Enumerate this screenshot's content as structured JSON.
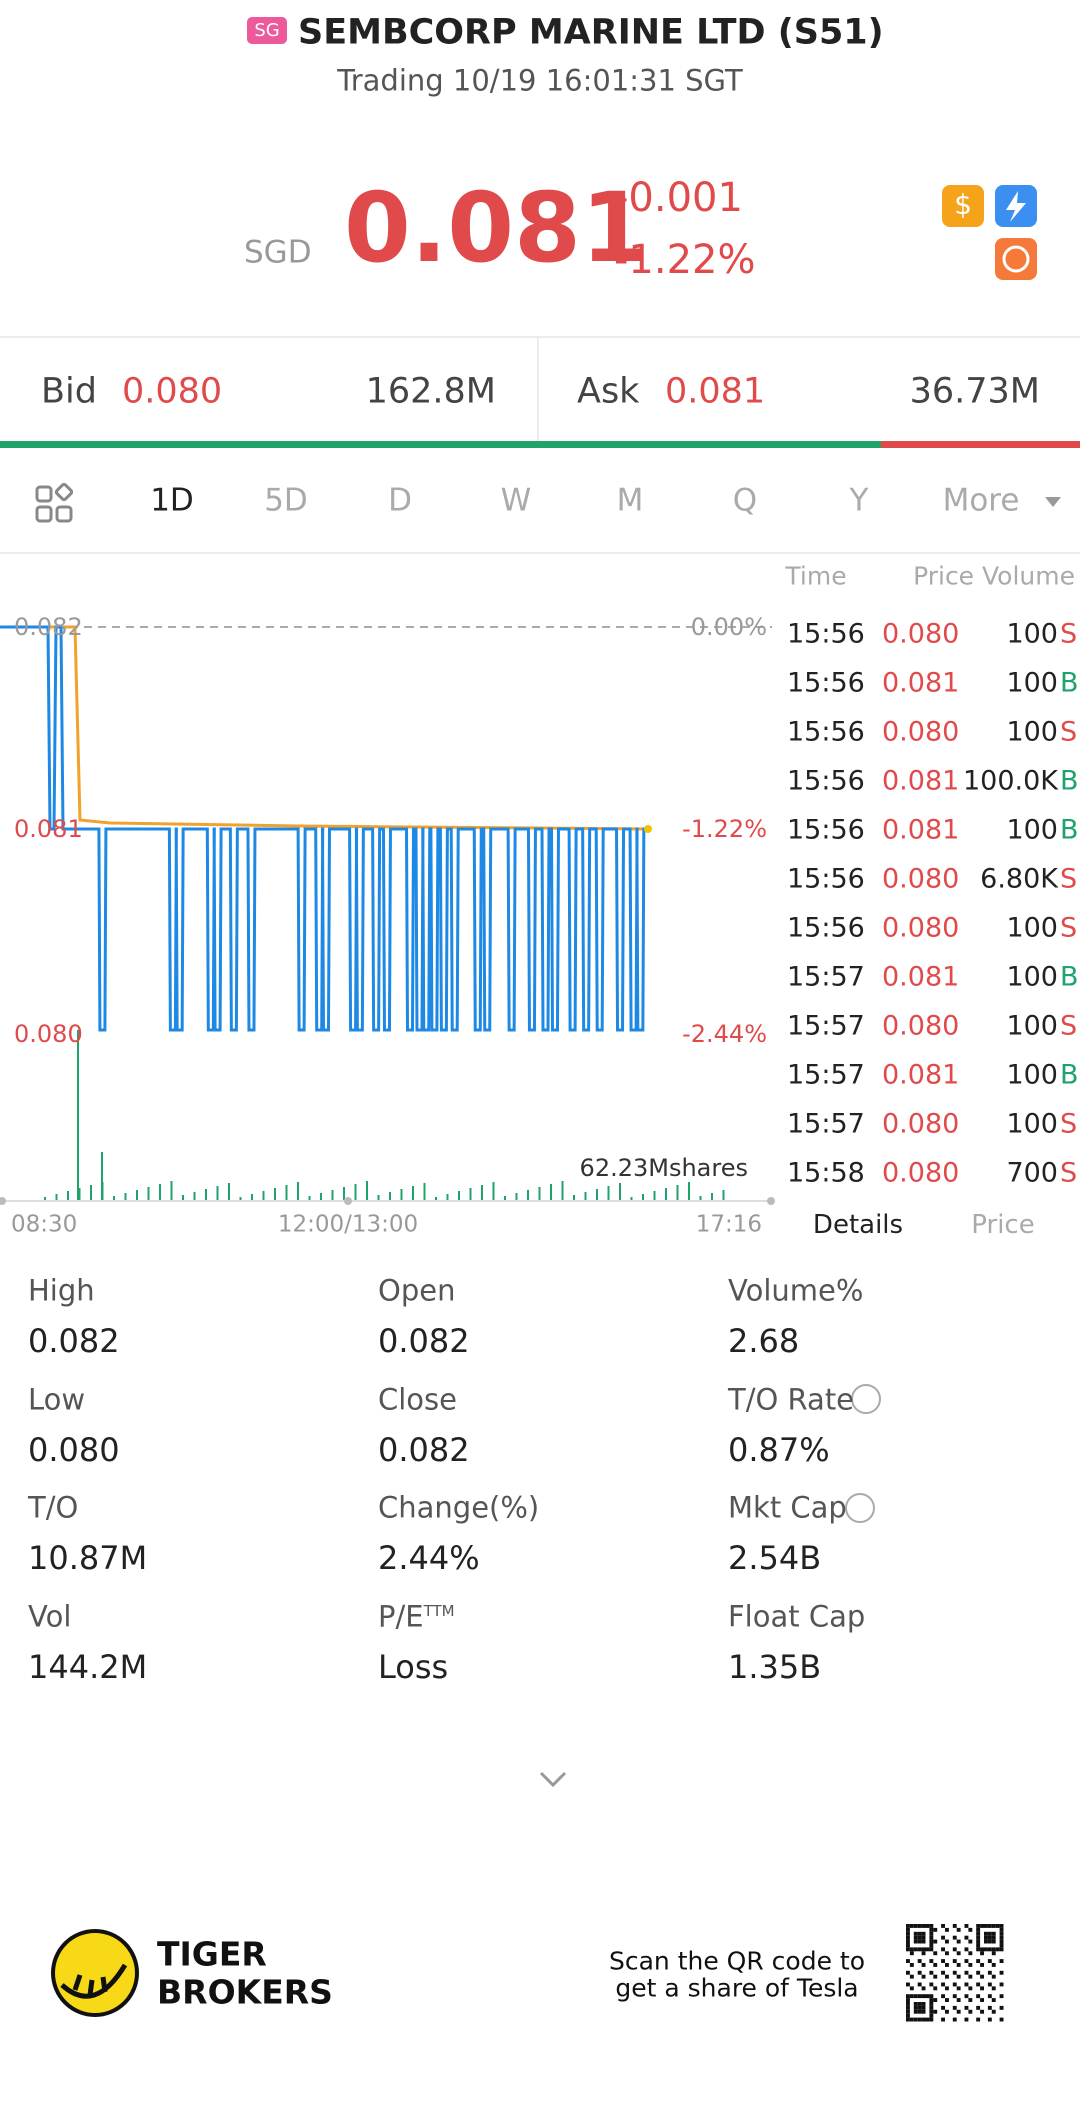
{
  "header": {
    "badge": "SG",
    "title": "SEMBCORP MARINE LTD (S51)",
    "status": "Trading 10/19 16:01:31 SGT"
  },
  "quote": {
    "currency": "SGD",
    "price": "0.081",
    "change": "-0.001",
    "change_pct": "-1.22%"
  },
  "bidask": {
    "bid_label": "Bid",
    "bid": "0.080",
    "bid_size": "162.8M",
    "ask_label": "Ask",
    "ask": "0.081",
    "ask_size": "36.73M"
  },
  "tabs": [
    "1D",
    "5D",
    "D",
    "W",
    "M",
    "Q",
    "Y",
    "More"
  ],
  "chart": {
    "price_labels": [
      "0.082",
      "0.081",
      "0.080"
    ],
    "pct_labels": [
      "0.00%",
      "-1.22%",
      "-2.44%"
    ],
    "volume": "62.23Mshares",
    "times": [
      "08:30",
      "12:00/13:00",
      "17:16"
    ]
  },
  "trades": {
    "headers": [
      "Time",
      "Price Volume"
    ],
    "rows": [
      [
        "15:56",
        "0.080",
        "100",
        "S"
      ],
      [
        "15:56",
        "0.081",
        "100",
        "B"
      ],
      [
        "15:56",
        "0.080",
        "100",
        "S"
      ],
      [
        "15:56",
        "0.081",
        "100.0K",
        "B"
      ],
      [
        "15:56",
        "0.081",
        "100",
        "B"
      ],
      [
        "15:56",
        "0.080",
        "6.80K",
        "S"
      ],
      [
        "15:56",
        "0.080",
        "100",
        "S"
      ],
      [
        "15:57",
        "0.081",
        "100",
        "B"
      ],
      [
        "15:57",
        "0.080",
        "100",
        "S"
      ],
      [
        "15:57",
        "0.081",
        "100",
        "B"
      ],
      [
        "15:57",
        "0.080",
        "100",
        "S"
      ],
      [
        "15:58",
        "0.080",
        "700",
        "S"
      ]
    ]
  },
  "trade_tabs": [
    "Details",
    "Price"
  ],
  "details": [
    {
      "label": "High",
      "value": "0.082"
    },
    {
      "label": "Open",
      "value": "0.082"
    },
    {
      "label": "Volume%",
      "value": "2.68"
    },
    {
      "label": "Low",
      "value": "0.080"
    },
    {
      "label": "Close",
      "value": "0.082"
    },
    {
      "label": "T/O Rate",
      "value": "0.87%"
    },
    {
      "label": "T/O",
      "value": "10.87M"
    },
    {
      "label": "Change(%)",
      "value": "2.44%"
    },
    {
      "label": "Mkt Cap",
      "value": "2.54B"
    },
    {
      "label": "Vol",
      "value": "144.2M"
    },
    {
      "label": "P/E",
      "sup": "TTM",
      "value": "Loss"
    },
    {
      "label": "Float Cap",
      "value": "1.35B"
    }
  ],
  "footer": {
    "brand": [
      "TIGER",
      "BROKERS"
    ],
    "scan": [
      "Scan the QR code to",
      "get a share of Tesla"
    ]
  }
}
